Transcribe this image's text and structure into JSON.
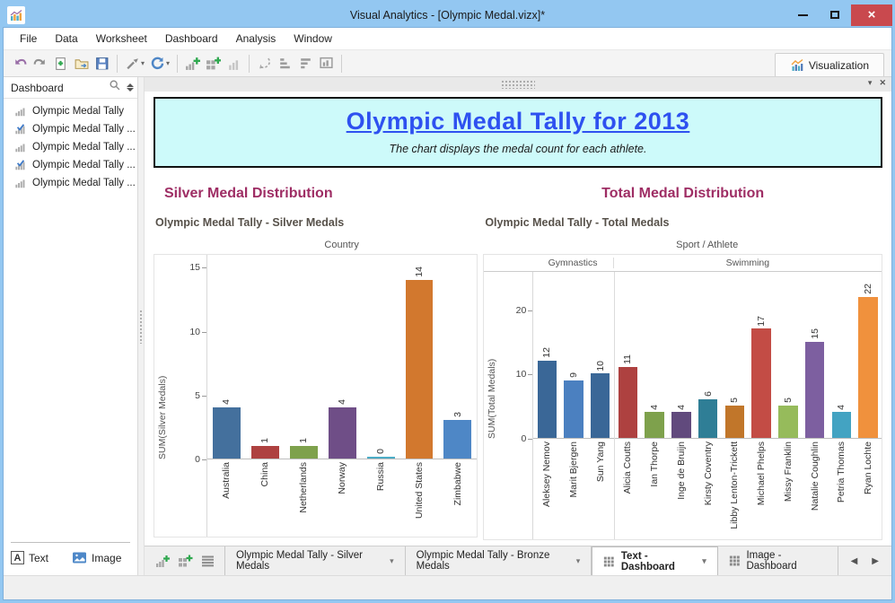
{
  "window": {
    "title": "Visual Analytics - [Olympic Medal.vizx]*"
  },
  "menu": {
    "items": [
      "File",
      "Data",
      "Worksheet",
      "Dashboard",
      "Analysis",
      "Window"
    ]
  },
  "toolbar": {
    "buttons": [
      "undo",
      "redo",
      "new-file",
      "open",
      "save",
      "|",
      "format-painter",
      "refresh",
      "|",
      "new-worksheet",
      "new-dashboard",
      "duplicate-worksheet",
      "|",
      "highlight",
      "sort-ascending",
      "sort-descending",
      "presentation",
      "|"
    ],
    "visualization_label": "Visualization"
  },
  "sidebar": {
    "header": "Dashboard",
    "items": [
      {
        "label": "Olympic Medal Tally",
        "checked": false
      },
      {
        "label": "Olympic Medal Tally ...",
        "checked": true
      },
      {
        "label": "Olympic Medal Tally ...",
        "checked": false
      },
      {
        "label": "Olympic Medal Tally ...",
        "checked": true
      },
      {
        "label": "Olympic Medal Tally ...",
        "checked": false
      }
    ],
    "footer": {
      "text_label": "Text",
      "image_label": "Image"
    }
  },
  "banner": {
    "title": "Olympic Medal Tally for 2013",
    "subtitle": "The chart displays the medal count for each athlete."
  },
  "sections": {
    "left": {
      "heading": "Silver Medal Distribution"
    },
    "right": {
      "heading": "Total Medal Distribution"
    }
  },
  "chart_data": [
    {
      "type": "bar",
      "title": "Olympic Medal Tally - Silver Medals",
      "top_axis_label": "Country",
      "ylabel": "SUM(Silver Medals)",
      "yticks": [
        0,
        5,
        10,
        15
      ],
      "ylim": [
        0,
        16
      ],
      "grid": false,
      "categories": [
        "Australia",
        "China",
        "Netherlands",
        "Norway",
        "Russia",
        "United States",
        "Zimbabwe"
      ],
      "values": [
        4,
        1,
        1,
        4,
        0,
        14,
        3
      ],
      "colors": [
        "#44709D",
        "#AE4140",
        "#7EA14C",
        "#6F4E87",
        "#4BACC6",
        "#D2782E",
        "#4E87C6"
      ]
    },
    {
      "type": "bar",
      "title": "Olympic Medal Tally - Total Medals",
      "top_axis_label": "Sport / Athlete",
      "ylabel": "SUM(Total Medals)",
      "yticks": [
        0,
        10,
        20
      ],
      "ylim": [
        0,
        26
      ],
      "grid": false,
      "groups": [
        {
          "label": "Gymnastics",
          "count": 3
        },
        {
          "label": "Swimming",
          "count": 10
        }
      ],
      "categories": [
        "Aleksey Nemov",
        "Marit Bjergen",
        "Sun Yang",
        "Alicia Coutts",
        "Ian Thorpe",
        "Inge de Bruijn",
        "Kirsty Coventry",
        "Libby Lenton-Trickett",
        "Michael Phelps",
        "Missy Franklin",
        "Natalie Coughlin",
        "Petria Thomas",
        "Ryan Lochte"
      ],
      "values": [
        12,
        9,
        10,
        11,
        4,
        4,
        6,
        5,
        17,
        5,
        15,
        4,
        22
      ],
      "colors": [
        "#3A6797",
        "#4B80C0",
        "#3A6797",
        "#AE4140",
        "#7EA14C",
        "#614A7D",
        "#2F7E96",
        "#C1762A",
        "#C34C45",
        "#96BB5B",
        "#7D5FA0",
        "#43A3C2",
        "#F0913D"
      ]
    }
  ],
  "tabbar": {
    "tabs": [
      {
        "label": "Olympic Medal Tally - Silver Medals",
        "active": false,
        "dropdown": true,
        "icon": "none"
      },
      {
        "label": "Olympic Medal Tally - Bronze Medals",
        "active": false,
        "dropdown": true,
        "icon": "none"
      },
      {
        "label": "Text - Dashboard",
        "active": true,
        "dropdown": true,
        "icon": "grid"
      },
      {
        "label": "Image - Dashboard",
        "active": false,
        "dropdown": false,
        "icon": "grid"
      }
    ]
  }
}
